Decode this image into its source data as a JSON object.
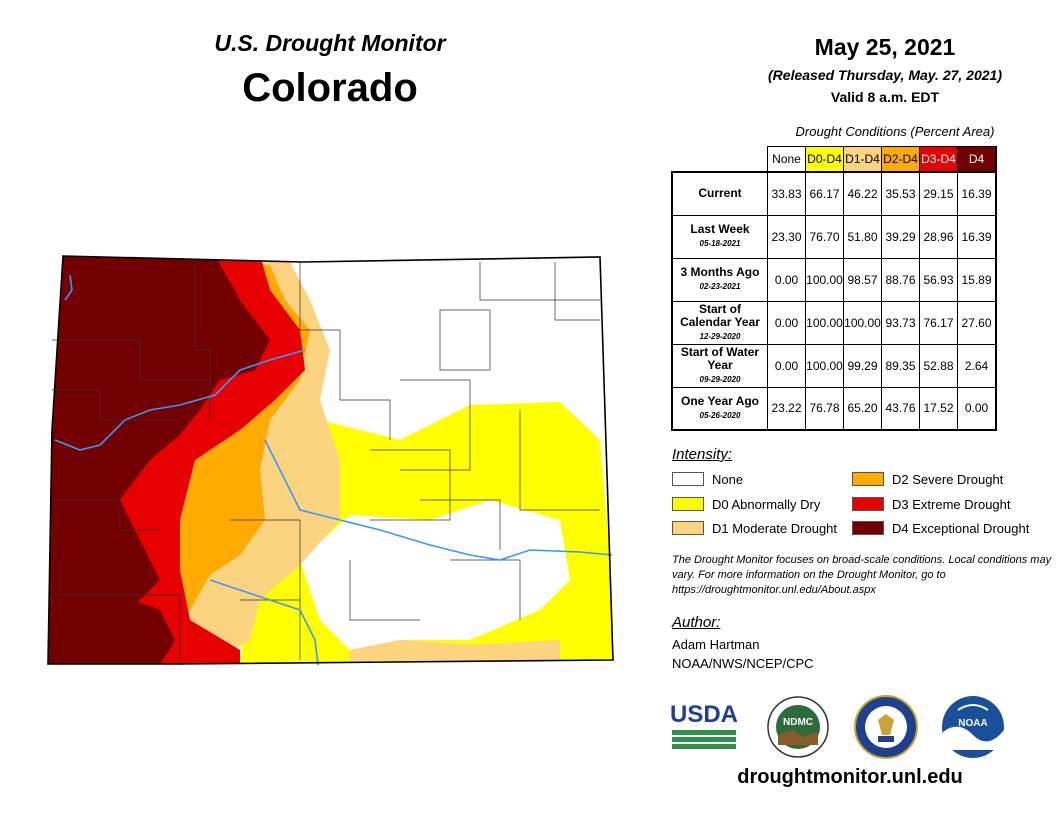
{
  "header": {
    "monitor_title": "U.S. Drought Monitor",
    "state": "Colorado",
    "date": "May 25, 2021",
    "released": "(Released Thursday, May. 27, 2021)",
    "valid": "Valid 8 a.m. EDT"
  },
  "table": {
    "caption": "Drought Conditions (Percent Area)",
    "columns": [
      {
        "label": "None",
        "color": "#ffffff",
        "text_color": "#000000"
      },
      {
        "label": "D0-D4",
        "color": "#ffff00",
        "text_color": "#000000"
      },
      {
        "label": "D1-D4",
        "color": "#fcd37f",
        "text_color": "#000000"
      },
      {
        "label": "D2-D4",
        "color": "#ffaa00",
        "text_color": "#000000"
      },
      {
        "label": "D3-D4",
        "color": "#e60000",
        "text_color": "#ffffff"
      },
      {
        "label": "D4",
        "color": "#730000",
        "text_color": "#ffffff"
      }
    ],
    "rows": [
      {
        "label": "Current",
        "date": "",
        "values": [
          "33.83",
          "66.17",
          "46.22",
          "35.53",
          "29.15",
          "16.39"
        ]
      },
      {
        "label": "Last Week",
        "date": "05-18-2021",
        "values": [
          "23.30",
          "76.70",
          "51.80",
          "39.29",
          "28.96",
          "16.39"
        ]
      },
      {
        "label": "3 Months Ago",
        "date": "02-23-2021",
        "values": [
          "0.00",
          "100.00",
          "98.57",
          "88.76",
          "56.93",
          "15.89"
        ]
      },
      {
        "label": "Start of Calendar Year",
        "date": "12-29-2020",
        "values": [
          "0.00",
          "100.00",
          "100.00",
          "93.73",
          "76.17",
          "27.60"
        ]
      },
      {
        "label": "Start of Water Year",
        "date": "09-29-2020",
        "values": [
          "0.00",
          "100.00",
          "99.29",
          "89.35",
          "52.88",
          "2.64"
        ]
      },
      {
        "label": "One Year Ago",
        "date": "05-26-2020",
        "values": [
          "23.22",
          "76.78",
          "65.20",
          "43.76",
          "17.52",
          "0.00"
        ]
      }
    ]
  },
  "legend": {
    "title": "Intensity:",
    "items": [
      {
        "label": "None",
        "color": "#ffffff"
      },
      {
        "label": "D0 Abnormally Dry",
        "color": "#ffff00"
      },
      {
        "label": "D1 Moderate Drought",
        "color": "#fcd37f"
      },
      {
        "label": "D2 Severe Drought",
        "color": "#ffaa00"
      },
      {
        "label": "D3 Extreme Drought",
        "color": "#e60000"
      },
      {
        "label": "D4 Exceptional Drought",
        "color": "#730000"
      }
    ]
  },
  "note": "The Drought Monitor focuses on broad-scale conditions. Local conditions may vary. For more information on the Drought Monitor, go to https://droughtmonitor.unl.edu/About.aspx",
  "author": {
    "title": "Author:",
    "name": "Adam Hartman",
    "org": "NOAA/NWS/NCEP/CPC"
  },
  "logos": {
    "usda": "USDA",
    "ndmc": "NDMC",
    "noaa": "NOAA"
  },
  "website": "droughtmonitor.unl.edu"
}
